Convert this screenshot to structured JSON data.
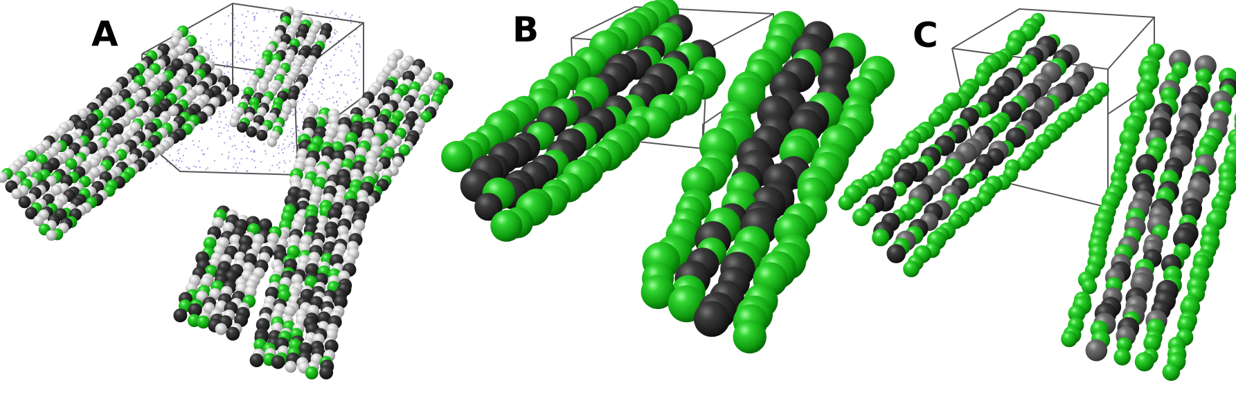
{
  "panels": [
    {
      "id": "A",
      "label": "A",
      "style": "all-atom",
      "colors": {
        "carbon": "#2b2b2b",
        "hydrogen": "#d6d6d6",
        "chlorine": "#14b314",
        "solvent": "#5555c8",
        "box": "#555555"
      }
    },
    {
      "id": "B",
      "label": "B",
      "style": "coarse-grained-large",
      "colors": {
        "core": "#2a2a2a",
        "shell": "#15b515",
        "box": "#555555"
      }
    },
    {
      "id": "C",
      "label": "C",
      "style": "coarse-grained-small",
      "colors": {
        "core": "#2a2a2a",
        "core_alt": "#5a5a5a",
        "shell": "#15b515",
        "box": "#555555"
      }
    }
  ]
}
